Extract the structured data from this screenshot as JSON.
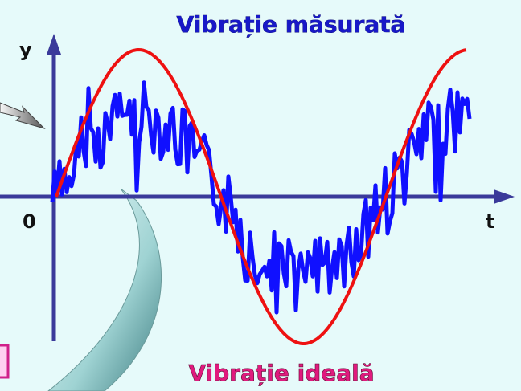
{
  "title": "Vibrație măsurată",
  "caption": "Vibrație ideală",
  "axes": {
    "y_label": "y",
    "x_label": "t",
    "origin": "0"
  }
}
